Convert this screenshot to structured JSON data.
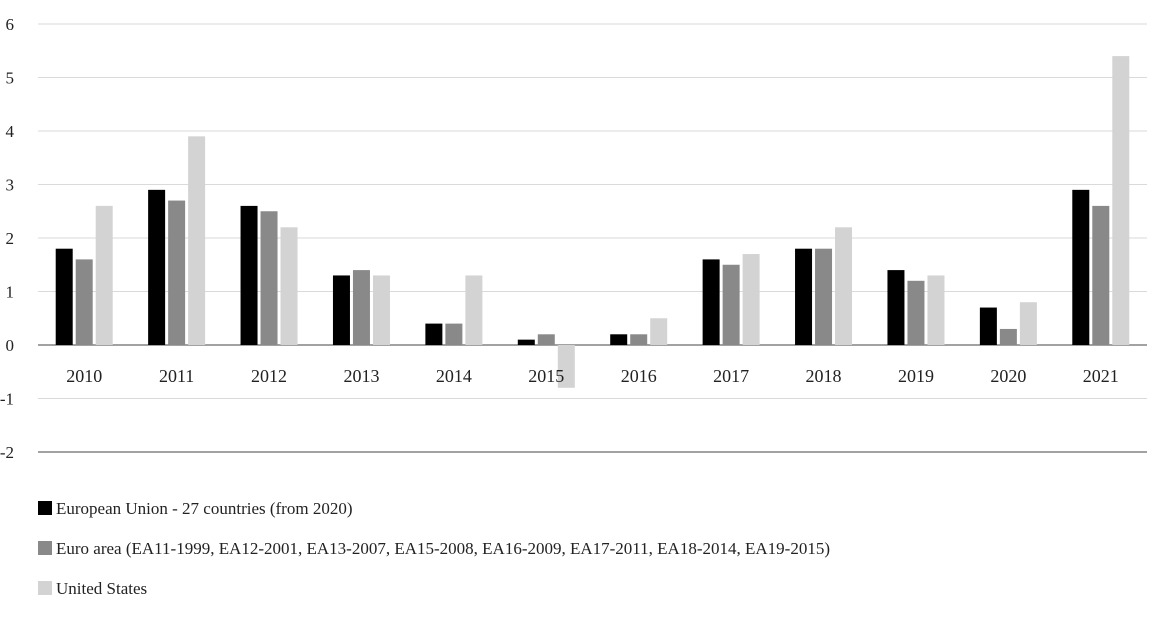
{
  "chart_data": {
    "type": "bar",
    "categories": [
      "2010",
      "2011",
      "2012",
      "2013",
      "2014",
      "2015",
      "2016",
      "2017",
      "2018",
      "2019",
      "2020",
      "2021"
    ],
    "series": [
      {
        "name": "European Union - 27 countries (from 2020)",
        "color": "#000000",
        "values": [
          1.8,
          2.9,
          2.6,
          1.3,
          0.4,
          0.1,
          0.2,
          1.6,
          1.8,
          1.4,
          0.7,
          2.9
        ]
      },
      {
        "name": "Euro area (EA11-1999, EA12-2001, EA13-2007, EA15-2008, EA16-2009, EA17-2011, EA18-2014, EA19-2015)",
        "color": "#898989",
        "values": [
          1.6,
          2.7,
          2.5,
          1.4,
          0.4,
          0.2,
          0.2,
          1.5,
          1.8,
          1.2,
          0.3,
          2.6
        ]
      },
      {
        "name": "United States",
        "color": "#d3d3d3",
        "values": [
          2.6,
          3.9,
          2.2,
          1.3,
          1.3,
          -0.8,
          0.5,
          1.7,
          2.2,
          1.3,
          0.8,
          5.4
        ]
      }
    ],
    "yticks": [
      "-2",
      "-1",
      "0",
      "1",
      "2",
      "3",
      "4",
      "5",
      "6"
    ],
    "ylim": [
      -2,
      6
    ],
    "grid": true,
    "legend_position": "bottom"
  }
}
